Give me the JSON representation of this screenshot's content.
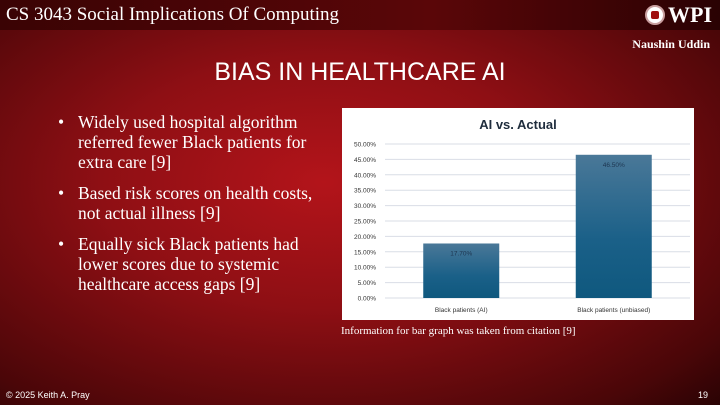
{
  "header": {
    "course": "CS 3043 Social Implications Of Computing",
    "logo_text": "WPI",
    "author": "Naushin Uddin"
  },
  "slide": {
    "title": "BIAS IN HEALTHCARE AI",
    "bullets": [
      "Widely used hospital algorithm referred fewer Black patients for extra care [9]",
      "Based risk scores on health costs, not actual illness [9]",
      "Equally sick Black patients had lower scores due to systemic healthcare access gaps [9]"
    ],
    "caption": "Information for bar graph was taken from citation [9]"
  },
  "footer": {
    "copyright": "© 2025 Keith A. Pray",
    "page": "19"
  },
  "chart_data": {
    "type": "bar",
    "title": "AI vs. Actual",
    "categories": [
      "Black patients (AI)",
      "Black patients (unbiased)"
    ],
    "values": [
      17.7,
      46.5
    ],
    "data_labels": [
      "17.70%",
      "46.50%"
    ],
    "ylim": [
      0,
      50
    ],
    "yticks": [
      "0.00%",
      "5.00%",
      "10.00%",
      "15.00%",
      "20.00%",
      "25.00%",
      "30.00%",
      "35.00%",
      "40.00%",
      "45.00%",
      "50.00%"
    ],
    "grid": true,
    "bar_color": "#1a5f85",
    "xlabel": "",
    "ylabel": ""
  }
}
